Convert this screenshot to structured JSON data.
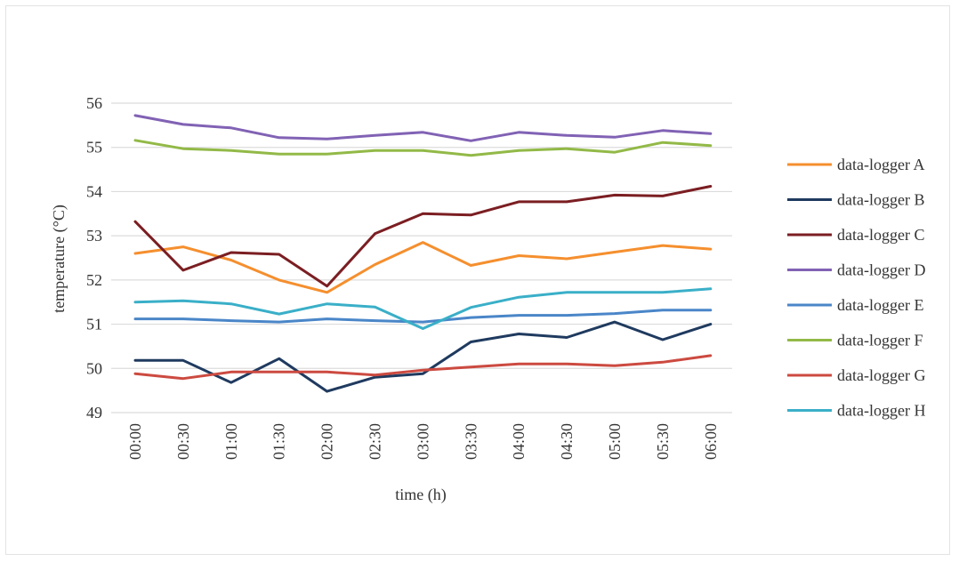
{
  "chart_data": {
    "type": "line",
    "xlabel": "time (h)",
    "ylabel": "temperature (°C)",
    "ylim": [
      49,
      56
    ],
    "yticks": [
      49,
      50,
      51,
      52,
      53,
      54,
      55,
      56
    ],
    "grid": "horizontal",
    "legend_position": "right",
    "categories": [
      "00:00",
      "00:30",
      "01:00",
      "01:30",
      "02:00",
      "02:30",
      "03:00",
      "03:30",
      "04:00",
      "04:30",
      "05:00",
      "05:30",
      "06:00"
    ],
    "series": [
      {
        "name": "data-logger A",
        "color": "#f58f2e",
        "values": [
          52.6,
          52.75,
          52.45,
          52.0,
          51.72,
          52.35,
          52.85,
          52.33,
          52.55,
          52.48,
          52.63,
          52.78,
          52.7
        ]
      },
      {
        "name": "data-logger B",
        "color": "#1f3a5f",
        "values": [
          50.18,
          50.18,
          49.68,
          50.22,
          49.48,
          49.8,
          49.88,
          50.6,
          50.78,
          50.7,
          51.05,
          50.65,
          51.0
        ]
      },
      {
        "name": "data-logger C",
        "color": "#7b1e22",
        "values": [
          53.32,
          52.22,
          52.62,
          52.58,
          51.86,
          53.05,
          53.5,
          53.47,
          53.77,
          53.77,
          53.92,
          53.9,
          54.12
        ]
      },
      {
        "name": "data-logger D",
        "color": "#8162b4",
        "values": [
          55.72,
          55.52,
          55.44,
          55.22,
          55.19,
          55.27,
          55.34,
          55.15,
          55.34,
          55.27,
          55.23,
          55.38,
          55.31
        ]
      },
      {
        "name": "data-logger E",
        "color": "#4a86c8",
        "values": [
          51.12,
          51.12,
          51.08,
          51.05,
          51.12,
          51.08,
          51.05,
          51.15,
          51.2,
          51.2,
          51.24,
          51.32,
          51.32
        ]
      },
      {
        "name": "data-logger F",
        "color": "#92b947",
        "values": [
          55.16,
          54.97,
          54.93,
          54.85,
          54.85,
          54.93,
          54.93,
          54.82,
          54.93,
          54.97,
          54.89,
          55.11,
          55.04
        ]
      },
      {
        "name": "data-logger G",
        "color": "#cc4a40",
        "values": [
          49.88,
          49.77,
          49.92,
          49.92,
          49.92,
          49.85,
          49.96,
          50.03,
          50.1,
          50.1,
          50.06,
          50.14,
          50.29
        ]
      },
      {
        "name": "data-logger H",
        "color": "#3aafc8",
        "values": [
          51.5,
          51.53,
          51.46,
          51.23,
          51.46,
          51.39,
          50.9,
          51.38,
          51.61,
          51.72,
          51.72,
          51.72,
          51.8
        ]
      }
    ]
  }
}
